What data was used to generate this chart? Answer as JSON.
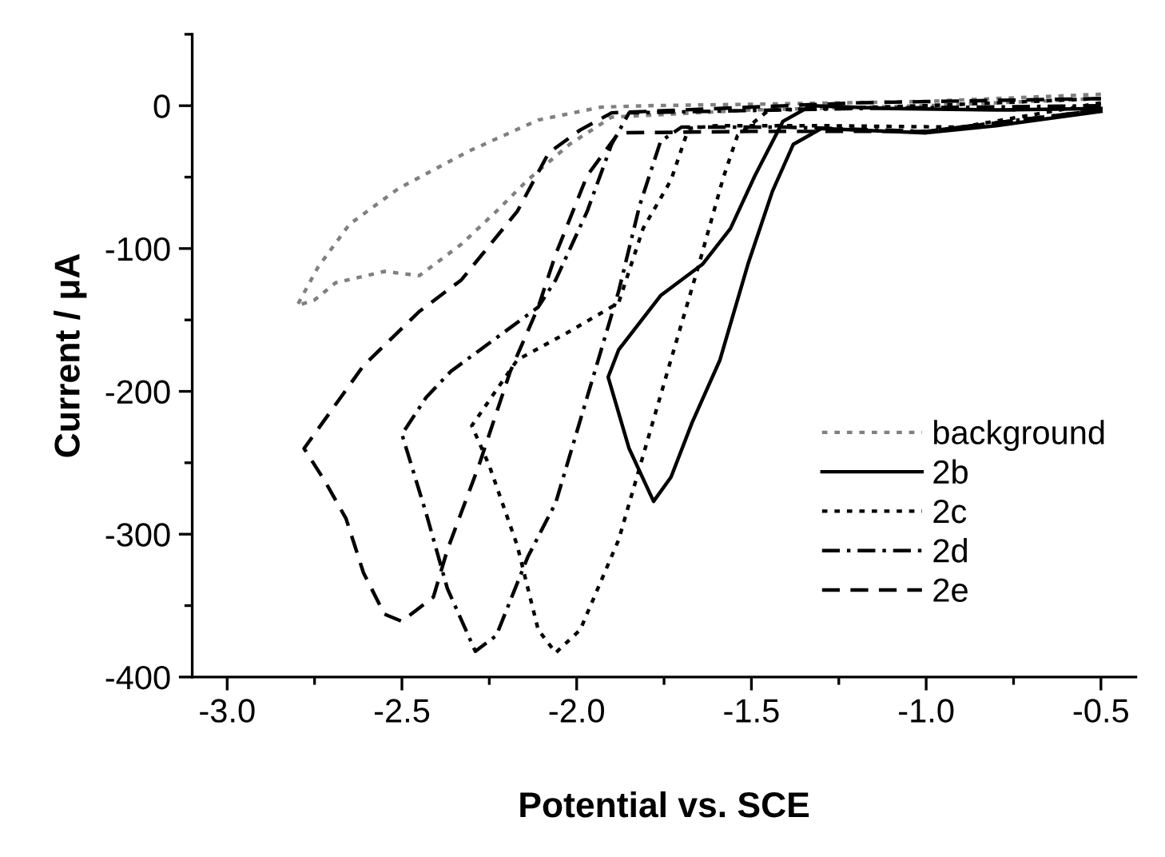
{
  "chart_data": {
    "type": "line",
    "xlabel": "Potential vs. SCE",
    "ylabel": "Current / μA",
    "xlim": [
      -3.1,
      -0.4
    ],
    "ylim": [
      -400,
      50
    ],
    "xticks": [
      {
        "value": -3,
        "label": "-3.0"
      },
      -2.5,
      {
        "value": -2,
        "label": "-2.0"
      },
      -1.5,
      {
        "value": -1,
        "label": "-1.0"
      },
      -0.5
    ],
    "yticks": [
      -400,
      -300,
      -200,
      -100,
      0
    ],
    "grid": false,
    "legend": "bottom right",
    "marker": "none",
    "series": [
      {
        "name": "background",
        "color": "#808080",
        "line_style": "dotted",
        "x": [
          -0.5,
          -1.0,
          -1.5,
          -1.8,
          -1.93,
          -2.11,
          -2.31,
          -2.51,
          -2.65,
          -2.74,
          -2.8,
          -2.75,
          -2.69,
          -2.55,
          -2.45,
          -2.33,
          -2.23,
          -2.14,
          -2.02,
          -1.9,
          -1.5,
          -1.0,
          -0.5
        ],
        "values": [
          8,
          3,
          1,
          0,
          -1,
          -10,
          -32,
          -58,
          -83,
          -113,
          -140,
          -136,
          -124,
          -116,
          -119,
          -97,
          -74,
          -52,
          -27,
          -8,
          -3,
          0,
          5
        ]
      },
      {
        "name": "2b",
        "color": "#000000",
        "line_style": "solid",
        "x": [
          -0.5,
          -0.8,
          -1.1,
          -1.33,
          -1.41,
          -1.49,
          -1.56,
          -1.64,
          -1.76,
          -1.88,
          -1.91,
          -1.85,
          -1.78,
          -1.73,
          -1.67,
          -1.59,
          -1.51,
          -1.44,
          -1.38,
          -1.3,
          -1.0,
          -0.8,
          -0.5
        ],
        "values": [
          -2,
          -3,
          -2,
          0,
          -11,
          -49,
          -86,
          -111,
          -133,
          -171,
          -190,
          -240,
          -277,
          -260,
          -222,
          -178,
          -111,
          -60,
          -27,
          -16,
          -19,
          -14,
          -4
        ]
      },
      {
        "name": "2c",
        "color": "#000000",
        "line_style": "dotted",
        "x": [
          -0.5,
          -0.9,
          -1.3,
          -1.6,
          -1.68,
          -1.73,
          -1.81,
          -1.88,
          -2.02,
          -2.17,
          -2.3,
          -2.25,
          -2.17,
          -2.11,
          -2.06,
          -1.99,
          -1.88,
          -1.74,
          -1.65,
          -1.58,
          -1.54,
          -1.45,
          -1.0,
          -0.5
        ],
        "values": [
          2,
          -15,
          -14,
          -14,
          -16,
          -52,
          -86,
          -138,
          -158,
          -178,
          -224,
          -252,
          -308,
          -367,
          -383,
          -367,
          -304,
          -186,
          -111,
          -50,
          -21,
          -3,
          0,
          5
        ]
      },
      {
        "name": "2d",
        "color": "#000000",
        "line_style": "dashdot",
        "x": [
          -0.5,
          -1.2,
          -1.85,
          -1.9,
          -1.97,
          -2.06,
          -2.11,
          -2.36,
          -2.43,
          -2.5,
          -2.43,
          -2.37,
          -2.29,
          -2.23,
          -2.14,
          -2.06,
          -1.88,
          -1.82,
          -1.76,
          -1.7,
          -1.4,
          -1.0,
          -0.5
        ],
        "values": [
          0,
          -2,
          -5,
          -27,
          -74,
          -122,
          -141,
          -186,
          -204,
          -230,
          -286,
          -338,
          -382,
          -371,
          -316,
          -278,
          -130,
          -70,
          -25,
          -15,
          -15,
          -18,
          -3
        ]
      },
      {
        "name": "2e",
        "color": "#000000",
        "line_style": "dashed",
        "x": [
          -0.5,
          -1.2,
          -1.9,
          -1.99,
          -2.08,
          -2.17,
          -2.27,
          -2.33,
          -2.45,
          -2.61,
          -2.78,
          -2.72,
          -2.66,
          -2.61,
          -2.55,
          -2.5,
          -2.41,
          -2.37,
          -2.28,
          -2.19,
          -2.11,
          -2.06,
          -1.97,
          -1.88,
          -1.5,
          -1.0,
          -0.5
        ],
        "values": [
          5,
          2,
          -5,
          -17,
          -33,
          -74,
          -104,
          -122,
          -144,
          -182,
          -240,
          -263,
          -289,
          -327,
          -356,
          -361,
          -344,
          -311,
          -252,
          -186,
          -141,
          -104,
          -49,
          -19,
          -18,
          -18,
          -3
        ]
      }
    ]
  }
}
